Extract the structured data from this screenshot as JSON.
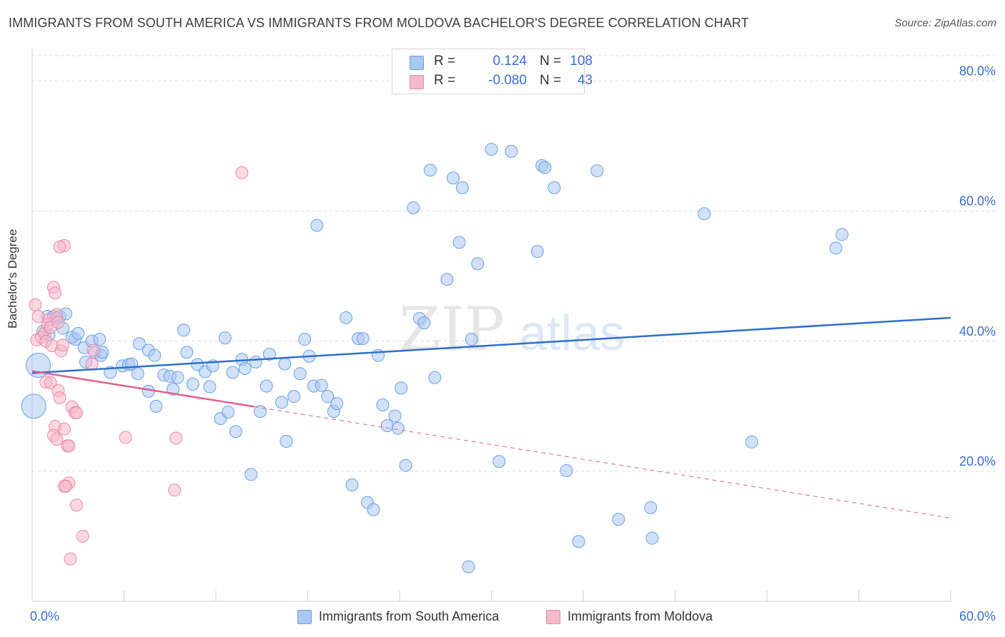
{
  "header": {
    "title": "IMMIGRANTS FROM SOUTH AMERICA VS IMMIGRANTS FROM MOLDOVA BACHELOR'S DEGREE CORRELATION CHART",
    "source": "Source: ZipAtlas.com"
  },
  "watermark": {
    "zip": "ZIP",
    "atlas": "atlas"
  },
  "stats_legend": {
    "rows": [
      {
        "r_key": "R =",
        "r_value": "0.124",
        "n_key": "N =",
        "n_value": "108",
        "color": "#a9c8f2"
      },
      {
        "r_key": "R =",
        "r_value": "-0.080",
        "n_key": "N =",
        "n_value": "43",
        "color": "#f6b8cb"
      }
    ]
  },
  "colors": {
    "blue_fill": "#a9c8f2",
    "blue_stroke": "#6d9fe0",
    "blue_line": "#2f6fcc",
    "pink_fill": "#f6b8cb",
    "pink_stroke": "#e88aa9",
    "pink_line": "#e0608e",
    "axis_label": "#3a6fcc",
    "grid": "#dcdcdc"
  },
  "chart_data": {
    "type": "scatter",
    "title": "IMMIGRANTS FROM SOUTH AMERICA VS IMMIGRANTS FROM MOLDOVA BACHELOR'S DEGREE CORRELATION CHART",
    "xlabel": "",
    "ylabel": "Bachelor's Degree",
    "xlim": [
      0,
      60
    ],
    "ylim": [
      0,
      85
    ],
    "x_tick_labels": [
      "0.0%",
      "60.0%"
    ],
    "y_ticks": [
      20,
      40,
      60,
      80
    ],
    "y_tick_labels": [
      "20.0%",
      "40.0%",
      "60.0%",
      "80.0%"
    ],
    "grid": true,
    "legend_position": "bottom",
    "series": [
      {
        "name": "Immigrants from South America",
        "r": 0.124,
        "n": 108,
        "trend": {
          "x": [
            0,
            60
          ],
          "y": [
            35.1,
            43.6
          ]
        },
        "points": [
          [
            0.4,
            36.3,
            3
          ],
          [
            0.1,
            30.0,
            3
          ],
          [
            1.0,
            43.8,
            1
          ],
          [
            1.4,
            43.8,
            1
          ],
          [
            1.8,
            43.8,
            1
          ],
          [
            2.2,
            44.2,
            1
          ],
          [
            1.1,
            41.0,
            1
          ],
          [
            2.0,
            42.0,
            1
          ],
          [
            2.8,
            40.3,
            1
          ],
          [
            3.4,
            39.0,
            1
          ],
          [
            4.1,
            38.3,
            1
          ],
          [
            4.5,
            37.8,
            1
          ],
          [
            2.6,
            40.6,
            1
          ],
          [
            3.0,
            41.2,
            1
          ],
          [
            3.9,
            40.0,
            1
          ],
          [
            4.4,
            40.3,
            1
          ],
          [
            4.6,
            38.3,
            1
          ],
          [
            5.1,
            35.2,
            1
          ],
          [
            5.9,
            36.2,
            1
          ],
          [
            6.3,
            36.4,
            1
          ],
          [
            6.5,
            36.5,
            1
          ],
          [
            7.0,
            39.6,
            1
          ],
          [
            7.6,
            38.6,
            1
          ],
          [
            8.0,
            37.8,
            1
          ],
          [
            6.9,
            35.0,
            1
          ],
          [
            7.6,
            32.3,
            1
          ],
          [
            8.1,
            30.0,
            1
          ],
          [
            8.6,
            34.8,
            1
          ],
          [
            9.0,
            34.6,
            1
          ],
          [
            9.2,
            32.6,
            1
          ],
          [
            9.5,
            34.4,
            1
          ],
          [
            9.9,
            41.7,
            1
          ],
          [
            10.1,
            38.3,
            1
          ],
          [
            10.5,
            33.4,
            1
          ],
          [
            10.8,
            36.4,
            1
          ],
          [
            11.3,
            35.3,
            1
          ],
          [
            11.6,
            33.0,
            1
          ],
          [
            11.8,
            36.2,
            1
          ],
          [
            12.3,
            28.1,
            1
          ],
          [
            12.6,
            40.5,
            1
          ],
          [
            12.8,
            29.1,
            1
          ],
          [
            13.1,
            35.2,
            1
          ],
          [
            13.3,
            26.1,
            1
          ],
          [
            13.7,
            37.2,
            1
          ],
          [
            13.9,
            35.8,
            1
          ],
          [
            14.3,
            19.5,
            1
          ],
          [
            14.6,
            36.8,
            1
          ],
          [
            14.9,
            29.2,
            1
          ],
          [
            15.3,
            33.1,
            1
          ],
          [
            15.5,
            38.0,
            1
          ],
          [
            16.3,
            30.6,
            1
          ],
          [
            16.5,
            36.5,
            1
          ],
          [
            16.6,
            24.6,
            1
          ],
          [
            17.1,
            31.5,
            1
          ],
          [
            17.5,
            35.0,
            1
          ],
          [
            17.8,
            40.3,
            1
          ],
          [
            18.1,
            37.7,
            1
          ],
          [
            18.4,
            33.1,
            1
          ],
          [
            18.6,
            57.8,
            1
          ],
          [
            18.9,
            33.2,
            1
          ],
          [
            19.3,
            31.5,
            1
          ],
          [
            19.7,
            29.2,
            1
          ],
          [
            19.9,
            30.4,
            1
          ],
          [
            20.5,
            43.6,
            1
          ],
          [
            20.9,
            17.9,
            1
          ],
          [
            21.3,
            40.4,
            1
          ],
          [
            21.6,
            40.4,
            1
          ],
          [
            21.9,
            15.2,
            1
          ],
          [
            22.3,
            14.1,
            1
          ],
          [
            22.6,
            37.8,
            1
          ],
          [
            22.9,
            30.2,
            1
          ],
          [
            23.2,
            27.0,
            1
          ],
          [
            23.7,
            28.5,
            1
          ],
          [
            23.9,
            26.6,
            1
          ],
          [
            24.1,
            32.8,
            1
          ],
          [
            24.4,
            20.9,
            1
          ],
          [
            24.9,
            60.5,
            1
          ],
          [
            25.3,
            43.5,
            1
          ],
          [
            25.6,
            42.8,
            1
          ],
          [
            26.0,
            66.3,
            1
          ],
          [
            26.3,
            34.4,
            1
          ],
          [
            27.1,
            49.5,
            1
          ],
          [
            27.5,
            65.1,
            1
          ],
          [
            27.9,
            55.2,
            1
          ],
          [
            28.1,
            63.6,
            1
          ],
          [
            28.5,
            5.3,
            1
          ],
          [
            28.7,
            40.3,
            1
          ],
          [
            29.1,
            51.9,
            1
          ],
          [
            30.0,
            69.5,
            1
          ],
          [
            30.5,
            21.5,
            1
          ],
          [
            31.3,
            69.2,
            1
          ],
          [
            33.0,
            53.8,
            1
          ],
          [
            33.3,
            67.0,
            1
          ],
          [
            33.5,
            66.7,
            1
          ],
          [
            34.1,
            63.6,
            1
          ],
          [
            34.9,
            20.1,
            1
          ],
          [
            35.7,
            9.2,
            1
          ],
          [
            36.9,
            66.2,
            1
          ],
          [
            38.3,
            12.6,
            1
          ],
          [
            40.4,
            14.4,
            1
          ],
          [
            40.5,
            9.7,
            1
          ],
          [
            43.9,
            59.6,
            1
          ],
          [
            47.0,
            24.5,
            1
          ],
          [
            52.9,
            56.4,
            1
          ],
          [
            52.5,
            54.3,
            1
          ],
          [
            0.7,
            41.5,
            1
          ],
          [
            1.6,
            43.6,
            1
          ],
          [
            3.5,
            36.8,
            1
          ]
        ]
      },
      {
        "name": "Immigrants from Moldova",
        "r": -0.08,
        "n": 43,
        "trend": {
          "x": [
            0,
            60
          ],
          "y": [
            35.4,
            12.8
          ]
        },
        "trend_solid_to_x": 14.5,
        "points": [
          [
            0.2,
            45.6,
            1
          ],
          [
            0.4,
            43.8,
            1
          ],
          [
            0.3,
            40.2,
            1
          ],
          [
            0.6,
            40.6,
            1
          ],
          [
            0.8,
            41.2,
            1
          ],
          [
            0.9,
            40.0,
            1
          ],
          [
            1.0,
            42.6,
            1
          ],
          [
            1.1,
            43.3,
            1
          ],
          [
            1.2,
            42.1,
            1
          ],
          [
            1.4,
            48.3,
            1
          ],
          [
            1.5,
            47.4,
            1
          ],
          [
            1.3,
            39.3,
            1
          ],
          [
            1.6,
            44.1,
            1
          ],
          [
            1.7,
            42.9,
            1
          ],
          [
            1.9,
            38.5,
            1
          ],
          [
            2.0,
            39.4,
            1
          ],
          [
            2.1,
            54.7,
            1
          ],
          [
            1.8,
            54.5,
            1
          ],
          [
            0.9,
            33.7,
            1
          ],
          [
            1.2,
            33.6,
            1
          ],
          [
            1.7,
            32.4,
            1
          ],
          [
            1.8,
            31.3,
            1
          ],
          [
            2.6,
            29.9,
            1
          ],
          [
            2.8,
            29.0,
            1
          ],
          [
            2.9,
            29.0,
            1
          ],
          [
            1.5,
            26.9,
            1
          ],
          [
            1.4,
            25.5,
            1
          ],
          [
            1.6,
            24.9,
            1
          ],
          [
            2.1,
            26.5,
            1
          ],
          [
            2.3,
            23.9,
            1
          ],
          [
            2.4,
            23.9,
            1
          ],
          [
            2.4,
            18.2,
            1
          ],
          [
            2.1,
            17.7,
            1
          ],
          [
            2.2,
            17.7,
            1
          ],
          [
            2.9,
            14.8,
            1
          ],
          [
            3.3,
            10.0,
            1
          ],
          [
            2.5,
            6.5,
            1
          ],
          [
            4.0,
            38.6,
            1
          ],
          [
            3.9,
            36.5,
            1
          ],
          [
            6.1,
            25.2,
            1
          ],
          [
            9.4,
            25.1,
            1
          ],
          [
            9.3,
            17.1,
            1
          ],
          [
            13.7,
            65.9,
            1
          ]
        ]
      }
    ]
  }
}
